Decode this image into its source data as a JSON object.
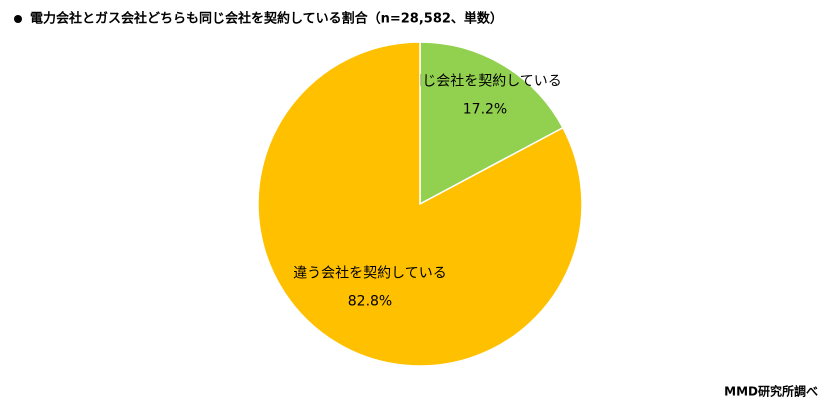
{
  "chart_data": {
    "type": "pie",
    "title": "電力会社とガス会社どちらも同じ会社を契約している割合（n=28,582、単数）",
    "categories": [
      "同じ会社を契約している",
      "違う会社を契約している"
    ],
    "values": [
      17.2,
      82.8
    ],
    "value_labels": [
      "17.2%",
      "82.8%"
    ],
    "colors": [
      "#92d050",
      "#ffc000"
    ],
    "start_angle": 0,
    "direction": "clockwise",
    "source": "MMD研究所調べ"
  }
}
